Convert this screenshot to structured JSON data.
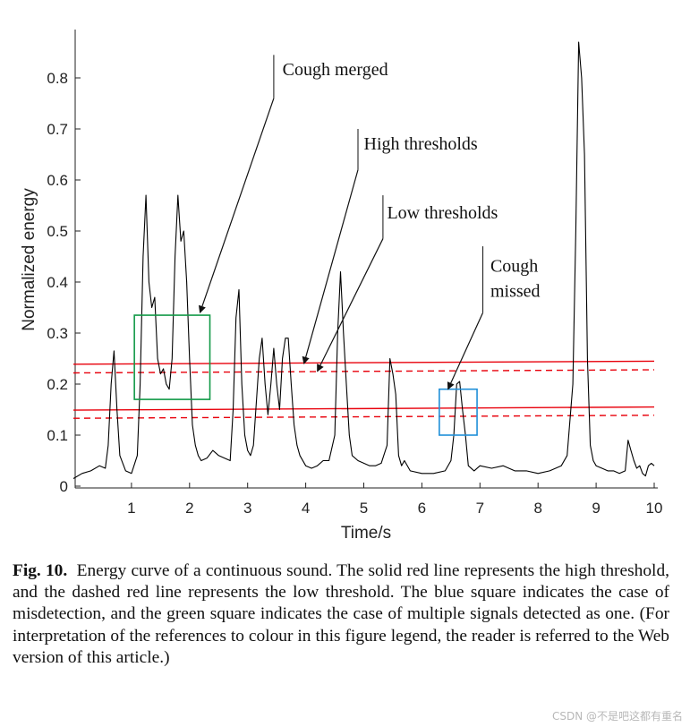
{
  "chart_data": {
    "type": "line",
    "xlabel": "Time/s",
    "ylabel": "Normalized energy",
    "xlim": [
      0,
      10
    ],
    "ylim": [
      0,
      0.9
    ],
    "xticks": [
      1,
      2,
      3,
      4,
      5,
      6,
      7,
      8,
      9,
      10
    ],
    "xtick_labels": [
      "1",
      "2",
      "3",
      "4",
      "5",
      "6",
      "7",
      "8",
      "9",
      "10"
    ],
    "yticks": [
      0,
      0.1,
      0.2,
      0.3,
      0.4,
      0.5,
      0.6,
      0.7,
      0.8
    ],
    "ytick_labels": [
      "0",
      "0.1",
      "0.2",
      "0.3",
      "0.4",
      "0.5",
      "0.6",
      "0.7",
      "0.8"
    ],
    "grid": false,
    "series": [
      {
        "role": "energy",
        "color": "#000000",
        "x": [
          0,
          0.15,
          0.3,
          0.45,
          0.55,
          0.6,
          0.65,
          0.7,
          0.75,
          0.8,
          0.9,
          1.0,
          1.1,
          1.15,
          1.2,
          1.25,
          1.3,
          1.35,
          1.4,
          1.45,
          1.5,
          1.55,
          1.6,
          1.65,
          1.7,
          1.75,
          1.8,
          1.85,
          1.9,
          1.95,
          2.0,
          2.05,
          2.1,
          2.15,
          2.2,
          2.3,
          2.4,
          2.5,
          2.6,
          2.7,
          2.75,
          2.8,
          2.85,
          2.9,
          2.95,
          3.0,
          3.05,
          3.1,
          3.2,
          3.25,
          3.3,
          3.35,
          3.4,
          3.45,
          3.5,
          3.55,
          3.6,
          3.65,
          3.7,
          3.75,
          3.8,
          3.85,
          3.9,
          4.0,
          4.1,
          4.2,
          4.3,
          4.4,
          4.5,
          4.55,
          4.6,
          4.65,
          4.7,
          4.75,
          4.8,
          4.9,
          5.0,
          5.1,
          5.2,
          5.3,
          5.4,
          5.45,
          5.5,
          5.55,
          5.6,
          5.65,
          5.7,
          5.8,
          6.0,
          6.2,
          6.4,
          6.5,
          6.55,
          6.6,
          6.65,
          6.7,
          6.75,
          6.8,
          6.9,
          7.0,
          7.2,
          7.4,
          7.6,
          7.8,
          8.0,
          8.2,
          8.4,
          8.5,
          8.6,
          8.65,
          8.7,
          8.75,
          8.8,
          8.85,
          8.9,
          8.95,
          9.0,
          9.1,
          9.2,
          9.3,
          9.4,
          9.5,
          9.55,
          9.6,
          9.65,
          9.7,
          9.75,
          9.8,
          9.85,
          9.9,
          9.95,
          10.0
        ],
        "y": [
          0.015,
          0.025,
          0.03,
          0.04,
          0.035,
          0.08,
          0.2,
          0.265,
          0.15,
          0.06,
          0.03,
          0.025,
          0.06,
          0.2,
          0.45,
          0.57,
          0.4,
          0.35,
          0.37,
          0.25,
          0.22,
          0.23,
          0.2,
          0.19,
          0.25,
          0.45,
          0.57,
          0.48,
          0.5,
          0.4,
          0.25,
          0.12,
          0.08,
          0.06,
          0.05,
          0.055,
          0.07,
          0.06,
          0.055,
          0.05,
          0.15,
          0.33,
          0.385,
          0.2,
          0.1,
          0.07,
          0.06,
          0.08,
          0.25,
          0.29,
          0.2,
          0.14,
          0.2,
          0.27,
          0.2,
          0.15,
          0.25,
          0.29,
          0.29,
          0.2,
          0.12,
          0.08,
          0.06,
          0.04,
          0.035,
          0.04,
          0.05,
          0.05,
          0.1,
          0.3,
          0.42,
          0.3,
          0.2,
          0.1,
          0.06,
          0.05,
          0.045,
          0.04,
          0.04,
          0.045,
          0.08,
          0.25,
          0.22,
          0.18,
          0.06,
          0.04,
          0.05,
          0.03,
          0.025,
          0.025,
          0.03,
          0.05,
          0.1,
          0.2,
          0.205,
          0.15,
          0.1,
          0.04,
          0.03,
          0.04,
          0.035,
          0.04,
          0.03,
          0.03,
          0.025,
          0.03,
          0.04,
          0.06,
          0.2,
          0.5,
          0.87,
          0.8,
          0.65,
          0.25,
          0.08,
          0.05,
          0.04,
          0.035,
          0.03,
          0.03,
          0.025,
          0.03,
          0.09,
          0.07,
          0.05,
          0.035,
          0.04,
          0.025,
          0.02,
          0.04,
          0.045,
          0.04
        ]
      },
      {
        "role": "high-threshold-upper",
        "color": "#e8000b",
        "style": "solid",
        "x": [
          0,
          10
        ],
        "y": [
          0.239,
          0.245
        ]
      },
      {
        "role": "low-threshold-upper",
        "color": "#e8000b",
        "style": "dashed",
        "x": [
          0,
          10
        ],
        "y": [
          0.222,
          0.228
        ]
      },
      {
        "role": "high-threshold-lower",
        "color": "#e8000b",
        "style": "solid",
        "x": [
          0,
          10
        ],
        "y": [
          0.149,
          0.155
        ]
      },
      {
        "role": "low-threshold-lower",
        "color": "#e8000b",
        "style": "dashed",
        "x": [
          0,
          10
        ],
        "y": [
          0.133,
          0.139
        ]
      }
    ],
    "boxes": [
      {
        "role": "cough-merged-box",
        "color": "#119947",
        "x": [
          1.05,
          2.35
        ],
        "y": [
          0.17,
          0.335
        ]
      },
      {
        "role": "cough-missed-box",
        "color": "#1f8fd8",
        "x": [
          6.3,
          6.95
        ],
        "y": [
          0.1,
          0.19
        ]
      }
    ],
    "annotations": [
      {
        "text": "Cough merged",
        "text_x": 3.6,
        "text_y": 0.805,
        "tick_x": 3.45,
        "tick_y": [
          0.76,
          0.845
        ],
        "arrow_from": [
          3.45,
          0.76
        ],
        "arrow_to": [
          2.18,
          0.34
        ]
      },
      {
        "text": "High thresholds",
        "text_x": 5.0,
        "text_y": 0.66,
        "tick_x": 4.9,
        "tick_y": [
          0.62,
          0.7
        ],
        "arrow_from": [
          4.9,
          0.62
        ],
        "arrow_to": [
          3.97,
          0.24
        ]
      },
      {
        "text": "Low thresholds",
        "text_x": 5.4,
        "text_y": 0.525,
        "tick_x": 5.33,
        "tick_y": [
          0.485,
          0.57
        ],
        "arrow_from": [
          5.33,
          0.485
        ],
        "arrow_to": [
          4.2,
          0.225
        ]
      },
      {
        "text": [
          "Cough",
          "missed"
        ],
        "text_x": 7.18,
        "text_y": 0.42,
        "tick_x": 7.05,
        "tick_y": [
          0.34,
          0.47
        ],
        "arrow_from": [
          7.05,
          0.34
        ],
        "arrow_to": [
          6.45,
          0.19
        ]
      }
    ]
  },
  "caption": {
    "label": "Fig. 10.",
    "text": "Energy curve of a continuous sound. The solid red line represents the high threshold, and the dashed red line represents the low threshold. The blue square indicates the case of misdetection, and the green square indicates the case of multiple signals detected as one. (For interpretation of the references to colour in this figure legend, the reader is referred to the Web version of this article.)"
  },
  "watermark": "CSDN @不是吧这都有重名"
}
